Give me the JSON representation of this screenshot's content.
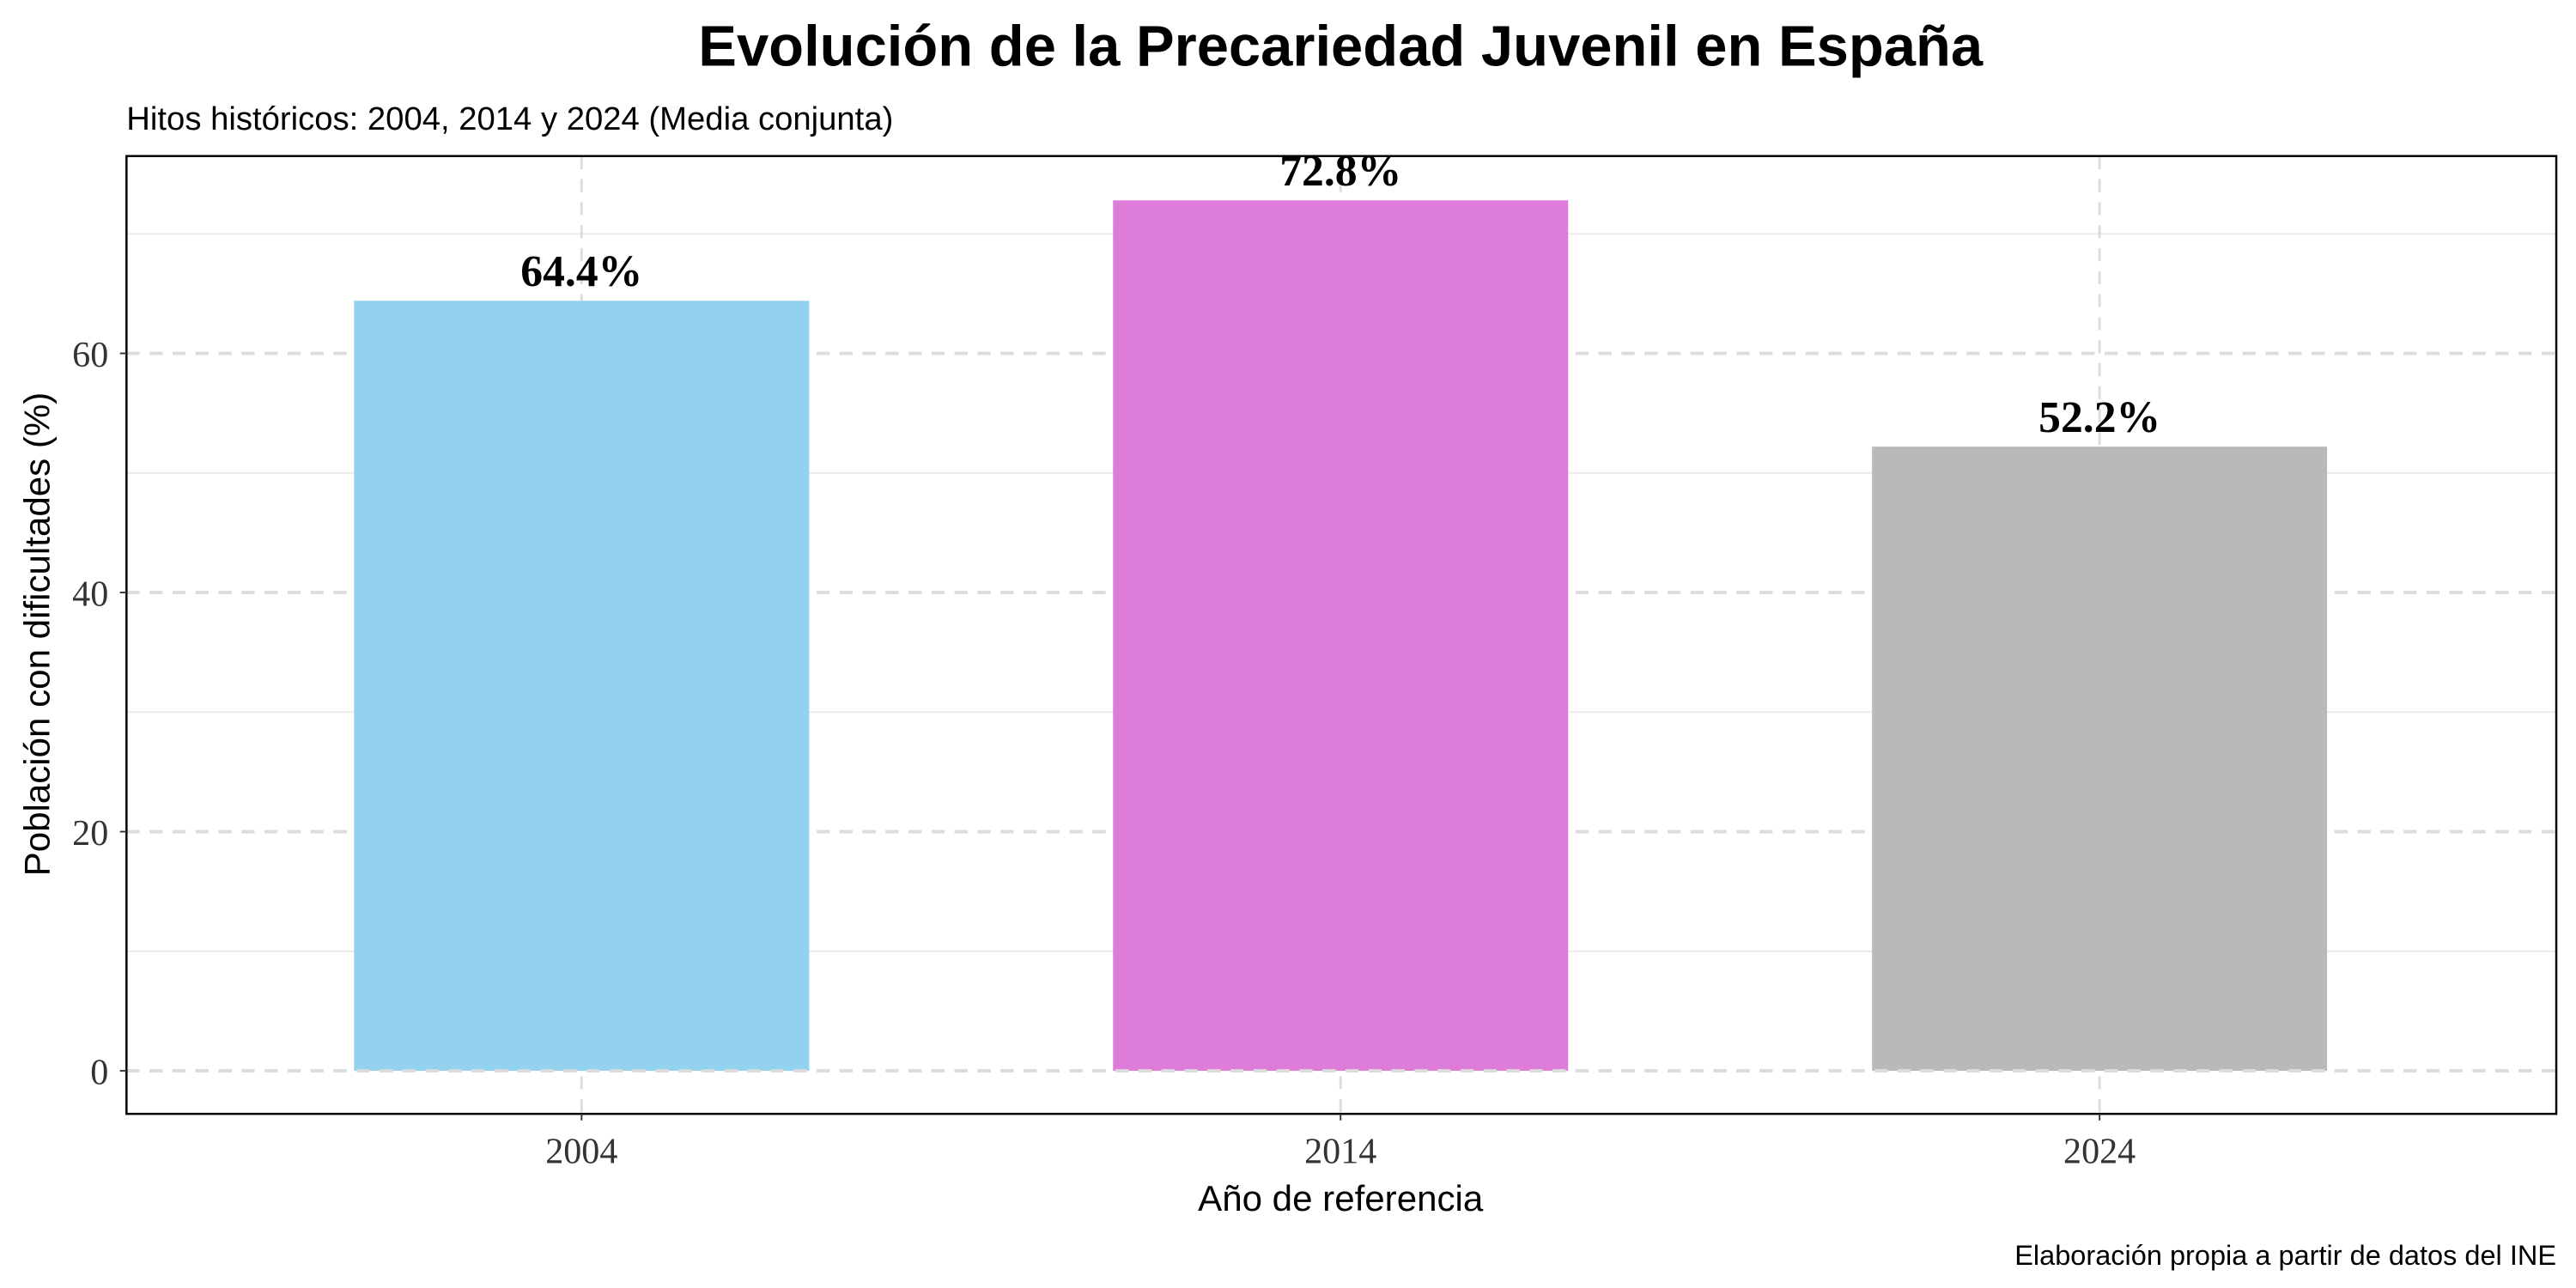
{
  "chart_data": {
    "type": "bar",
    "title": "Evolución de la Precariedad Juvenil en España",
    "subtitle": "Hitos históricos: 2004, 2014 y 2024 (Media conjunta)",
    "xlabel": "Año de referencia",
    "ylabel": "Población con dificultades (%)",
    "caption": "Elaboración propia a partir de datos del INE",
    "categories": [
      "2004",
      "2014",
      "2024"
    ],
    "values": [
      64.4,
      72.8,
      52.2
    ],
    "value_labels": [
      "64.4%",
      "72.8%",
      "52.2%"
    ],
    "colors": [
      "#93D2EE",
      "#DD7DD9",
      "#B9B9B9"
    ],
    "ylim": [
      -3.6,
      76.5
    ],
    "yticks": [
      0,
      20,
      40,
      60
    ],
    "ytick_labels": [
      "0",
      "20",
      "40",
      "60"
    ],
    "grid": true,
    "legend": "none"
  }
}
